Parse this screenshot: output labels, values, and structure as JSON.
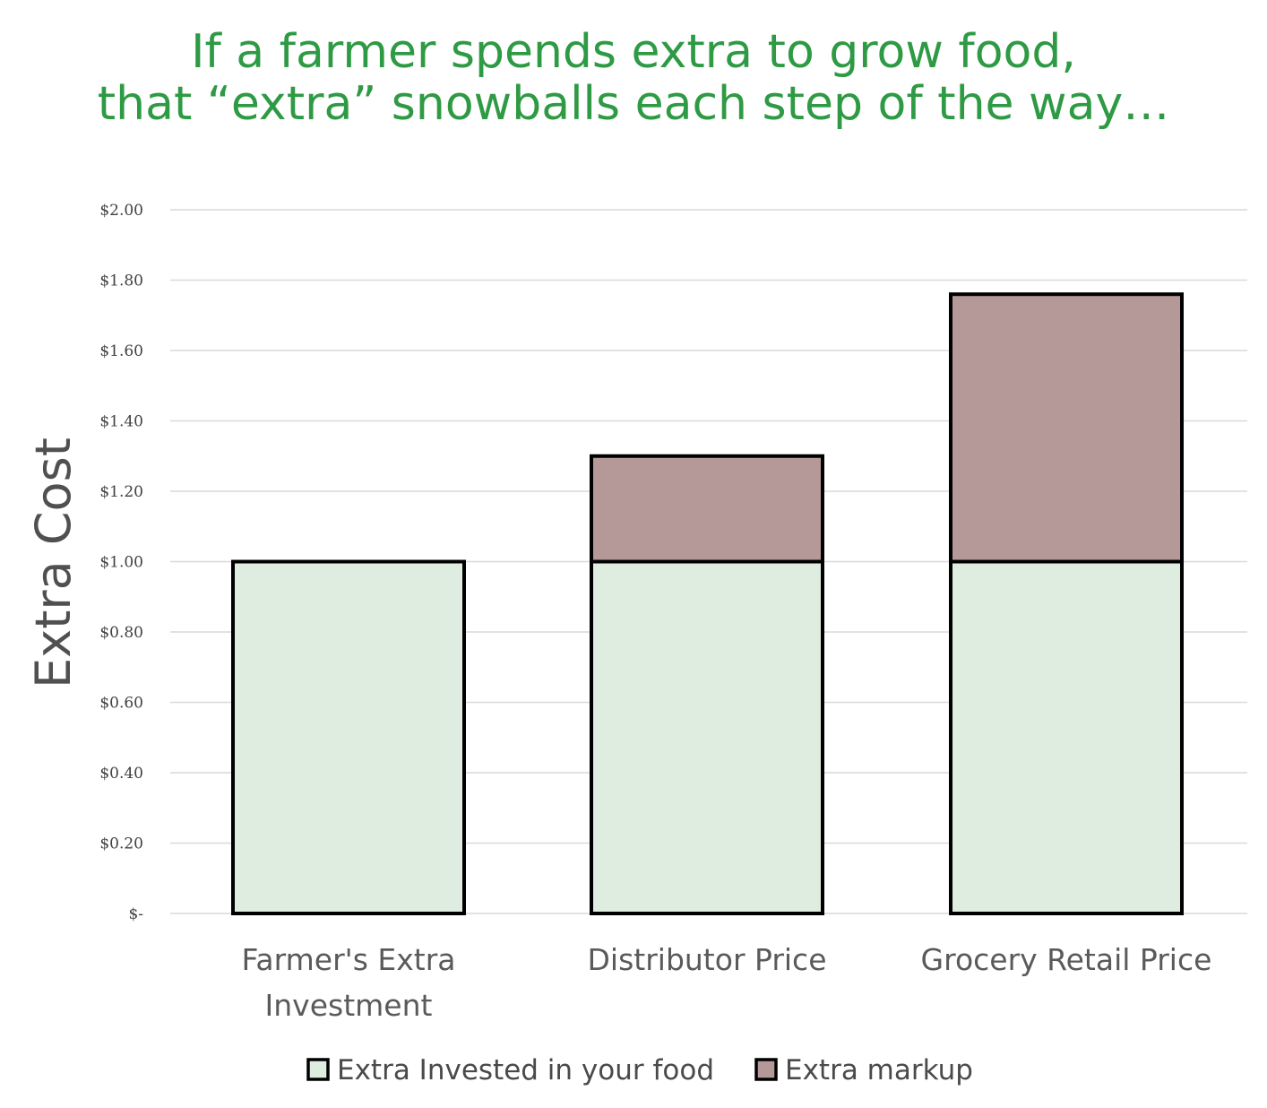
{
  "chart_data": {
    "type": "bar",
    "stacked": true,
    "title_lines": [
      "If a farmer spends extra to grow food,",
      "that “extra” snowballs each step of the way…"
    ],
    "ylabel": "Extra Cost",
    "xlabel": "",
    "ylim": [
      0,
      2
    ],
    "y_ticks": [
      0,
      0.2,
      0.4,
      0.6,
      0.8,
      1.0,
      1.2,
      1.4,
      1.6,
      1.8,
      2.0
    ],
    "y_tick_labels": [
      "$-",
      "$0.20",
      "$0.40",
      "$0.60",
      "$0.80",
      "$1.00",
      "$1.20",
      "$1.40",
      "$1.60",
      "$1.80",
      "$2.00"
    ],
    "categories": [
      [
        "Farmer's Extra",
        "Investment"
      ],
      [
        "Distributor Price"
      ],
      [
        "Grocery Retail Price"
      ]
    ],
    "series": [
      {
        "name": "Extra Invested in your food",
        "color": "#dfede0",
        "values": [
          1.0,
          1.0,
          1.0
        ]
      },
      {
        "name": "Extra markup",
        "color": "#b59898",
        "values": [
          0,
          0.3,
          0.76
        ]
      }
    ],
    "grid": true,
    "legend_position": "bottom"
  }
}
